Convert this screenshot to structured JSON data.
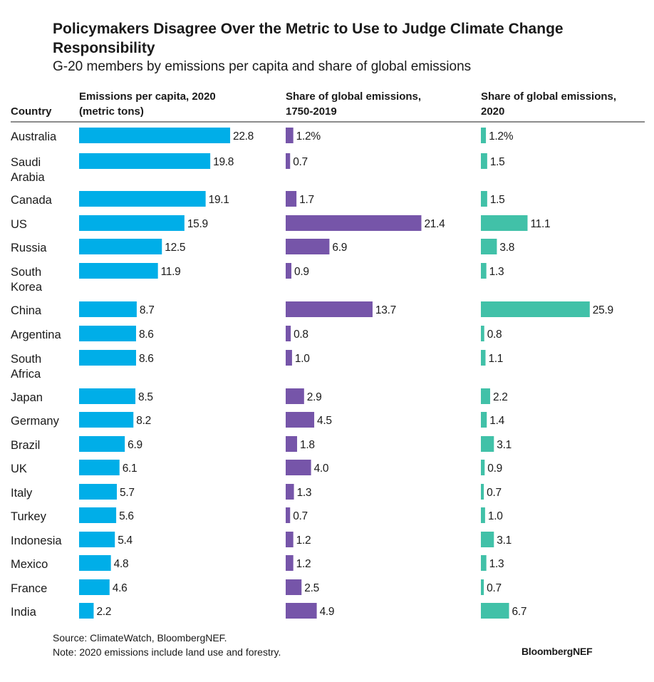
{
  "title": "Policymakers Disagree Over the Metric to Use to Judge Climate Change Responsibility",
  "subtitle": "G-20 members by emissions per capita and share of global emissions",
  "source": "Source: ClimateWatch, BloombergNEF.",
  "note": "Note: 2020 emissions include land use and forestry.",
  "brand": "BloombergNEF",
  "chart_data": {
    "type": "bar",
    "orientation": "horizontal",
    "category_header": "Country",
    "categories": [
      [
        "Australia"
      ],
      [
        "Saudi",
        "Arabia"
      ],
      [
        "Canada"
      ],
      [
        "US"
      ],
      [
        "Russia"
      ],
      [
        "South",
        "Korea"
      ],
      [
        "China"
      ],
      [
        "Argentina"
      ],
      [
        "South",
        "Africa"
      ],
      [
        "Japan"
      ],
      [
        "Germany"
      ],
      [
        "Brazil"
      ],
      [
        "UK"
      ],
      [
        "Italy"
      ],
      [
        "Turkey"
      ],
      [
        "Indonesia"
      ],
      [
        "Mexico"
      ],
      [
        "France"
      ],
      [
        "India"
      ]
    ],
    "series": [
      {
        "header": [
          "Emissions per capita, 2020",
          "(metric tons)"
        ],
        "color": "#00aee8",
        "values": [
          22.8,
          19.8,
          19.1,
          15.9,
          12.5,
          11.9,
          8.7,
          8.6,
          8.6,
          8.5,
          8.2,
          6.9,
          6.1,
          5.7,
          5.6,
          5.4,
          4.8,
          4.6,
          2.2
        ],
        "labels": [
          "22.8",
          "19.8",
          "19.1",
          "15.9",
          "12.5",
          "11.9",
          "8.7",
          "8.6",
          "8.6",
          "8.5",
          "8.2",
          "6.9",
          "6.1",
          "5.7",
          "5.6",
          "5.4",
          "4.8",
          "4.6",
          "2.2"
        ]
      },
      {
        "header": [
          "Share of global emissions,",
          "1750-2019"
        ],
        "color": "#7655a9",
        "values": [
          1.2,
          0.7,
          1.7,
          21.4,
          6.9,
          0.9,
          13.7,
          0.8,
          1.0,
          2.9,
          4.5,
          1.8,
          4.0,
          1.3,
          0.7,
          1.2,
          1.2,
          2.5,
          4.9
        ],
        "labels": [
          "1.2%",
          "0.7",
          "1.7",
          "21.4",
          "6.9",
          "0.9",
          "13.7",
          "0.8",
          "1.0",
          "2.9",
          "4.5",
          "1.8",
          "4.0",
          "1.3",
          "0.7",
          "1.2",
          "1.2",
          "2.5",
          "4.9"
        ]
      },
      {
        "header": [
          "Share of global emissions,",
          "2020"
        ],
        "color": "#41c1a8",
        "values": [
          1.2,
          1.5,
          1.5,
          11.1,
          3.8,
          1.3,
          25.9,
          0.8,
          1.1,
          2.2,
          1.4,
          3.1,
          0.9,
          0.7,
          1.0,
          3.1,
          1.3,
          0.7,
          6.7
        ],
        "labels": [
          "1.2%",
          "1.5",
          "1.5",
          "11.1",
          "3.8",
          "1.3",
          "25.9",
          "0.8",
          "1.1",
          "2.2",
          "1.4",
          "3.1",
          "0.9",
          "0.7",
          "1.0",
          "3.1",
          "1.3",
          "0.7",
          "6.7"
        ]
      }
    ]
  }
}
